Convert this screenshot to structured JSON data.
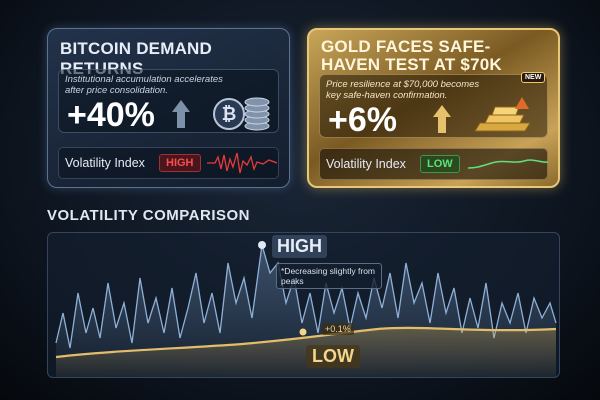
{
  "cards": [
    {
      "title": "BITCOIN DEMAND RETURNS",
      "subtitle": "Institutional accumulation accelerates after price consolidation.",
      "change": "+40%",
      "indicator_label": "Volatility Index",
      "indicator_value": "HIGH"
    },
    {
      "title": "GOLD FACES SAFE-HAVEN TEST AT $70K",
      "badge": "NEW",
      "subtitle": "Price resilience at $70,000 becomes key safe-haven confirmation.",
      "change": "+6%",
      "indicator_label": "Volatility Index",
      "indicator_value": "LOW"
    }
  ],
  "comparison": {
    "title": "VOLATILITY COMPARISON",
    "high_label": "HIGH",
    "high_note": "*Decreasing slightly from peaks",
    "low_label": "LOW",
    "low_note": "+0.1%"
  }
}
